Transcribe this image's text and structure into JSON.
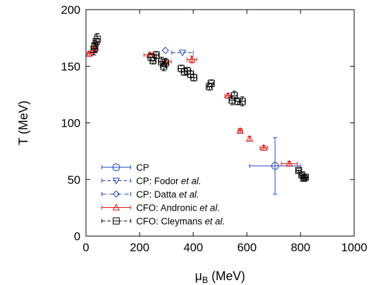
{
  "chart_data": {
    "type": "scatter",
    "title": "",
    "xlabel_symbol": "μ",
    "xlabel_sub": "B",
    "xlabel_unit": " (MeV)",
    "ylabel": "T (MeV)",
    "xlim": [
      0,
      1000
    ],
    "ylim": [
      0,
      200
    ],
    "x_ticks": [
      0,
      200,
      400,
      600,
      800,
      1000
    ],
    "y_ticks": [
      0,
      50,
      100,
      150,
      200
    ],
    "x_tick_labels": [
      "0",
      "200",
      "400",
      "600",
      "800",
      "1000"
    ],
    "y_tick_labels": [
      "0",
      "50",
      "100",
      "150",
      "200"
    ],
    "grid": false,
    "legend_position": "bottom-left",
    "series": [
      {
        "name": "CP",
        "name_parts": [
          {
            "text": "CP",
            "italic": false
          }
        ],
        "color": "#1f3fbf",
        "marker": "circle",
        "line": "solid",
        "points": [
          {
            "x": 705,
            "y": 62,
            "xerr": 95,
            "yerr": 25
          }
        ]
      },
      {
        "name": "CP: Fodor et al.",
        "name_parts": [
          {
            "text": "CP: Fodor ",
            "italic": false
          },
          {
            "text": "et al.",
            "italic": true
          }
        ],
        "color": "#1f3fbf",
        "marker": "triangle-down",
        "line": "dashed",
        "points": [
          {
            "x": 360,
            "y": 162,
            "xerr": 40,
            "yerr": 0
          }
        ]
      },
      {
        "name": "CP: Datta et al.",
        "name_parts": [
          {
            "text": "CP: Datta ",
            "italic": false
          },
          {
            "text": "et al.",
            "italic": true
          }
        ],
        "color": "#1f3fbf",
        "marker": "diamond",
        "line": "dashdot",
        "points": [
          {
            "x": 296,
            "y": 164,
            "xerr": 0,
            "yerr": 0
          }
        ]
      },
      {
        "name": "CFO: Andronic et al.",
        "name_parts": [
          {
            "text": "CFO: Andronic ",
            "italic": false
          },
          {
            "text": "et al.",
            "italic": true
          }
        ],
        "color": "#dd1111",
        "marker": "triangle-up",
        "line": "solid",
        "points": [
          {
            "x": 12,
            "y": 161,
            "xerr": 8,
            "yerr": 2
          },
          {
            "x": 26,
            "y": 164,
            "xerr": 0,
            "yerr": 4
          },
          {
            "x": 35,
            "y": 166,
            "xerr": 0,
            "yerr": 4
          },
          {
            "x": 238,
            "y": 160,
            "xerr": 22,
            "yerr": 2
          },
          {
            "x": 298,
            "y": 154,
            "xerr": 20,
            "yerr": 2
          },
          {
            "x": 395,
            "y": 156,
            "xerr": 18,
            "yerr": 3
          },
          {
            "x": 530,
            "y": 124,
            "xerr": 12,
            "yerr": 2
          },
          {
            "x": 575,
            "y": 93,
            "xerr": 8,
            "yerr": 2
          },
          {
            "x": 610,
            "y": 86,
            "xerr": 0,
            "yerr": 2
          },
          {
            "x": 663,
            "y": 78,
            "xerr": 14,
            "yerr": 2
          },
          {
            "x": 758,
            "y": 64,
            "xerr": 30,
            "yerr": 2
          }
        ]
      },
      {
        "name": "CFO: Cleymans et al.",
        "name_parts": [
          {
            "text": "CFO: Cleymans ",
            "italic": false
          },
          {
            "text": "et al.",
            "italic": true
          }
        ],
        "color": "#000000",
        "marker": "square",
        "line": "dashed",
        "points": [
          {
            "x": 30,
            "y": 165,
            "xerr": 0,
            "yerr": 5
          },
          {
            "x": 33,
            "y": 168,
            "xerr": 0,
            "yerr": 5
          },
          {
            "x": 38,
            "y": 172,
            "xerr": 0,
            "yerr": 6
          },
          {
            "x": 43,
            "y": 174,
            "xerr": 0,
            "yerr": 5
          },
          {
            "x": 243,
            "y": 158,
            "xerr": 12,
            "yerr": 3
          },
          {
            "x": 250,
            "y": 155,
            "xerr": 8,
            "yerr": 3
          },
          {
            "x": 262,
            "y": 160,
            "xerr": 8,
            "yerr": 3
          },
          {
            "x": 282,
            "y": 154,
            "xerr": 10,
            "yerr": 4
          },
          {
            "x": 290,
            "y": 150,
            "xerr": 10,
            "yerr": 4
          },
          {
            "x": 297,
            "y": 153,
            "xerr": 10,
            "yerr": 4
          },
          {
            "x": 355,
            "y": 148,
            "xerr": 10,
            "yerr": 3
          },
          {
            "x": 367,
            "y": 145,
            "xerr": 10,
            "yerr": 3
          },
          {
            "x": 378,
            "y": 146,
            "xerr": 10,
            "yerr": 3
          },
          {
            "x": 390,
            "y": 143,
            "xerr": 10,
            "yerr": 3
          },
          {
            "x": 402,
            "y": 140,
            "xerr": 10,
            "yerr": 3
          },
          {
            "x": 460,
            "y": 132,
            "xerr": 8,
            "yerr": 3
          },
          {
            "x": 467,
            "y": 135,
            "xerr": 8,
            "yerr": 3
          },
          {
            "x": 545,
            "y": 120,
            "xerr": 10,
            "yerr": 4
          },
          {
            "x": 553,
            "y": 124,
            "xerr": 10,
            "yerr": 4
          },
          {
            "x": 566,
            "y": 119,
            "xerr": 10,
            "yerr": 3
          },
          {
            "x": 583,
            "y": 119,
            "xerr": 10,
            "yerr": 4
          },
          {
            "x": 793,
            "y": 58,
            "xerr": 8,
            "yerr": 2
          },
          {
            "x": 805,
            "y": 54,
            "xerr": 8,
            "yerr": 2
          },
          {
            "x": 812,
            "y": 51,
            "xerr": 8,
            "yerr": 2
          },
          {
            "x": 818,
            "y": 52,
            "xerr": 8,
            "yerr": 2
          }
        ]
      }
    ]
  }
}
